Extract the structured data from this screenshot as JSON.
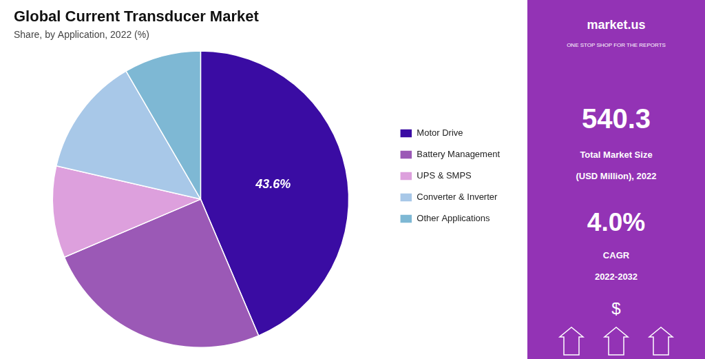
{
  "chart_data": {
    "type": "pie",
    "title": "Global Current Transducer Market",
    "subtitle": "Share, by Application, 2022 (%)",
    "categories": [
      "Motor Drive",
      "Battery Management",
      "UPS & SMPS",
      "Converter & Inverter",
      "Other Applications"
    ],
    "values": [
      43.6,
      25.0,
      10.0,
      13.0,
      8.4
    ],
    "colors": [
      "#3a0ca3",
      "#9b59b6",
      "#dda0dd",
      "#a8c8e8",
      "#7eb8d4"
    ],
    "value_labels": [
      "43.6%",
      null,
      null,
      null,
      null
    ],
    "legend": "right",
    "annotations": [
      "market.us",
      "ONE STOP SHOP FOR THE REPORTS",
      "540.3",
      "Total Market Size",
      "(USD Million), 2022",
      "4.0%",
      "CAGR",
      "2022-2032",
      "$"
    ]
  }
}
